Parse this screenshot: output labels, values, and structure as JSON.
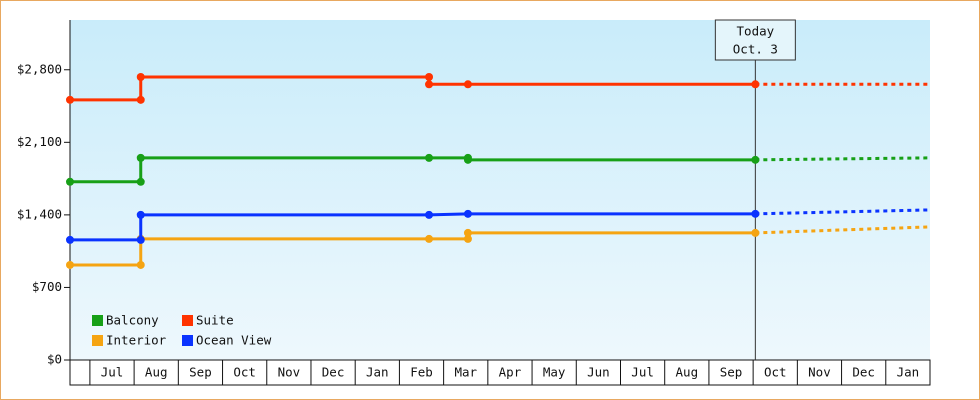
{
  "chart_data": {
    "type": "step-line",
    "categories": [
      null,
      "Jul",
      "Aug",
      "Sep",
      "Oct",
      "Nov",
      "Dec",
      "Jan",
      "Feb",
      "Mar",
      "Apr",
      "May",
      "Jun",
      "Jul",
      "Aug",
      "Sep",
      "Oct",
      "Nov",
      "Dec",
      "Jan"
    ],
    "xlim": [
      0,
      19.45
    ],
    "ylim": [
      0,
      3280
    ],
    "yticks": [
      {
        "value": 0,
        "label": "$0"
      },
      {
        "value": 700,
        "label": "$700"
      },
      {
        "value": 1400,
        "label": "$1,400"
      },
      {
        "value": 2100,
        "label": "$2,100"
      },
      {
        "value": 2800,
        "label": "$2,800"
      }
    ],
    "legend": "lower left",
    "today": {
      "label": [
        "Today",
        "Oct. 3"
      ],
      "x": 15.5
    },
    "series": [
      {
        "name": "Balcony",
        "color": "#17a017",
        "x": [
          0,
          1.6,
          1.6,
          8.12,
          9.0,
          9.0,
          15.5
        ],
        "values": [
          1719,
          1719,
          1950,
          1950,
          1950,
          1931,
          1931
        ],
        "forecast_x": [
          15.5,
          19.45
        ],
        "forecast_values": [
          1931,
          1950
        ]
      },
      {
        "name": "Suite",
        "color": "#ff3300",
        "x": [
          0,
          1.6,
          1.6,
          8.12,
          8.12,
          9.0,
          15.5
        ],
        "values": [
          2510,
          2510,
          2730,
          2730,
          2660,
          2660,
          2660
        ],
        "forecast_x": [
          15.5,
          19.45
        ],
        "forecast_values": [
          2660,
          2660
        ]
      },
      {
        "name": "Interior",
        "color": "#f5a412",
        "x": [
          0,
          1.6,
          1.6,
          8.12,
          9.0,
          9.0,
          15.5
        ],
        "values": [
          917,
          917,
          1168,
          1168,
          1168,
          1226,
          1226
        ],
        "forecast_x": [
          15.5,
          19.45
        ],
        "forecast_values": [
          1226,
          1284
        ]
      },
      {
        "name": "Ocean View",
        "color": "#0a33ff",
        "x": [
          0,
          1.6,
          1.6,
          8.12,
          9.0,
          15.5
        ],
        "values": [
          1159,
          1159,
          1400,
          1400,
          1410,
          1410
        ],
        "forecast_x": [
          15.5,
          19.45
        ],
        "forecast_values": [
          1410,
          1448
        ]
      }
    ]
  }
}
